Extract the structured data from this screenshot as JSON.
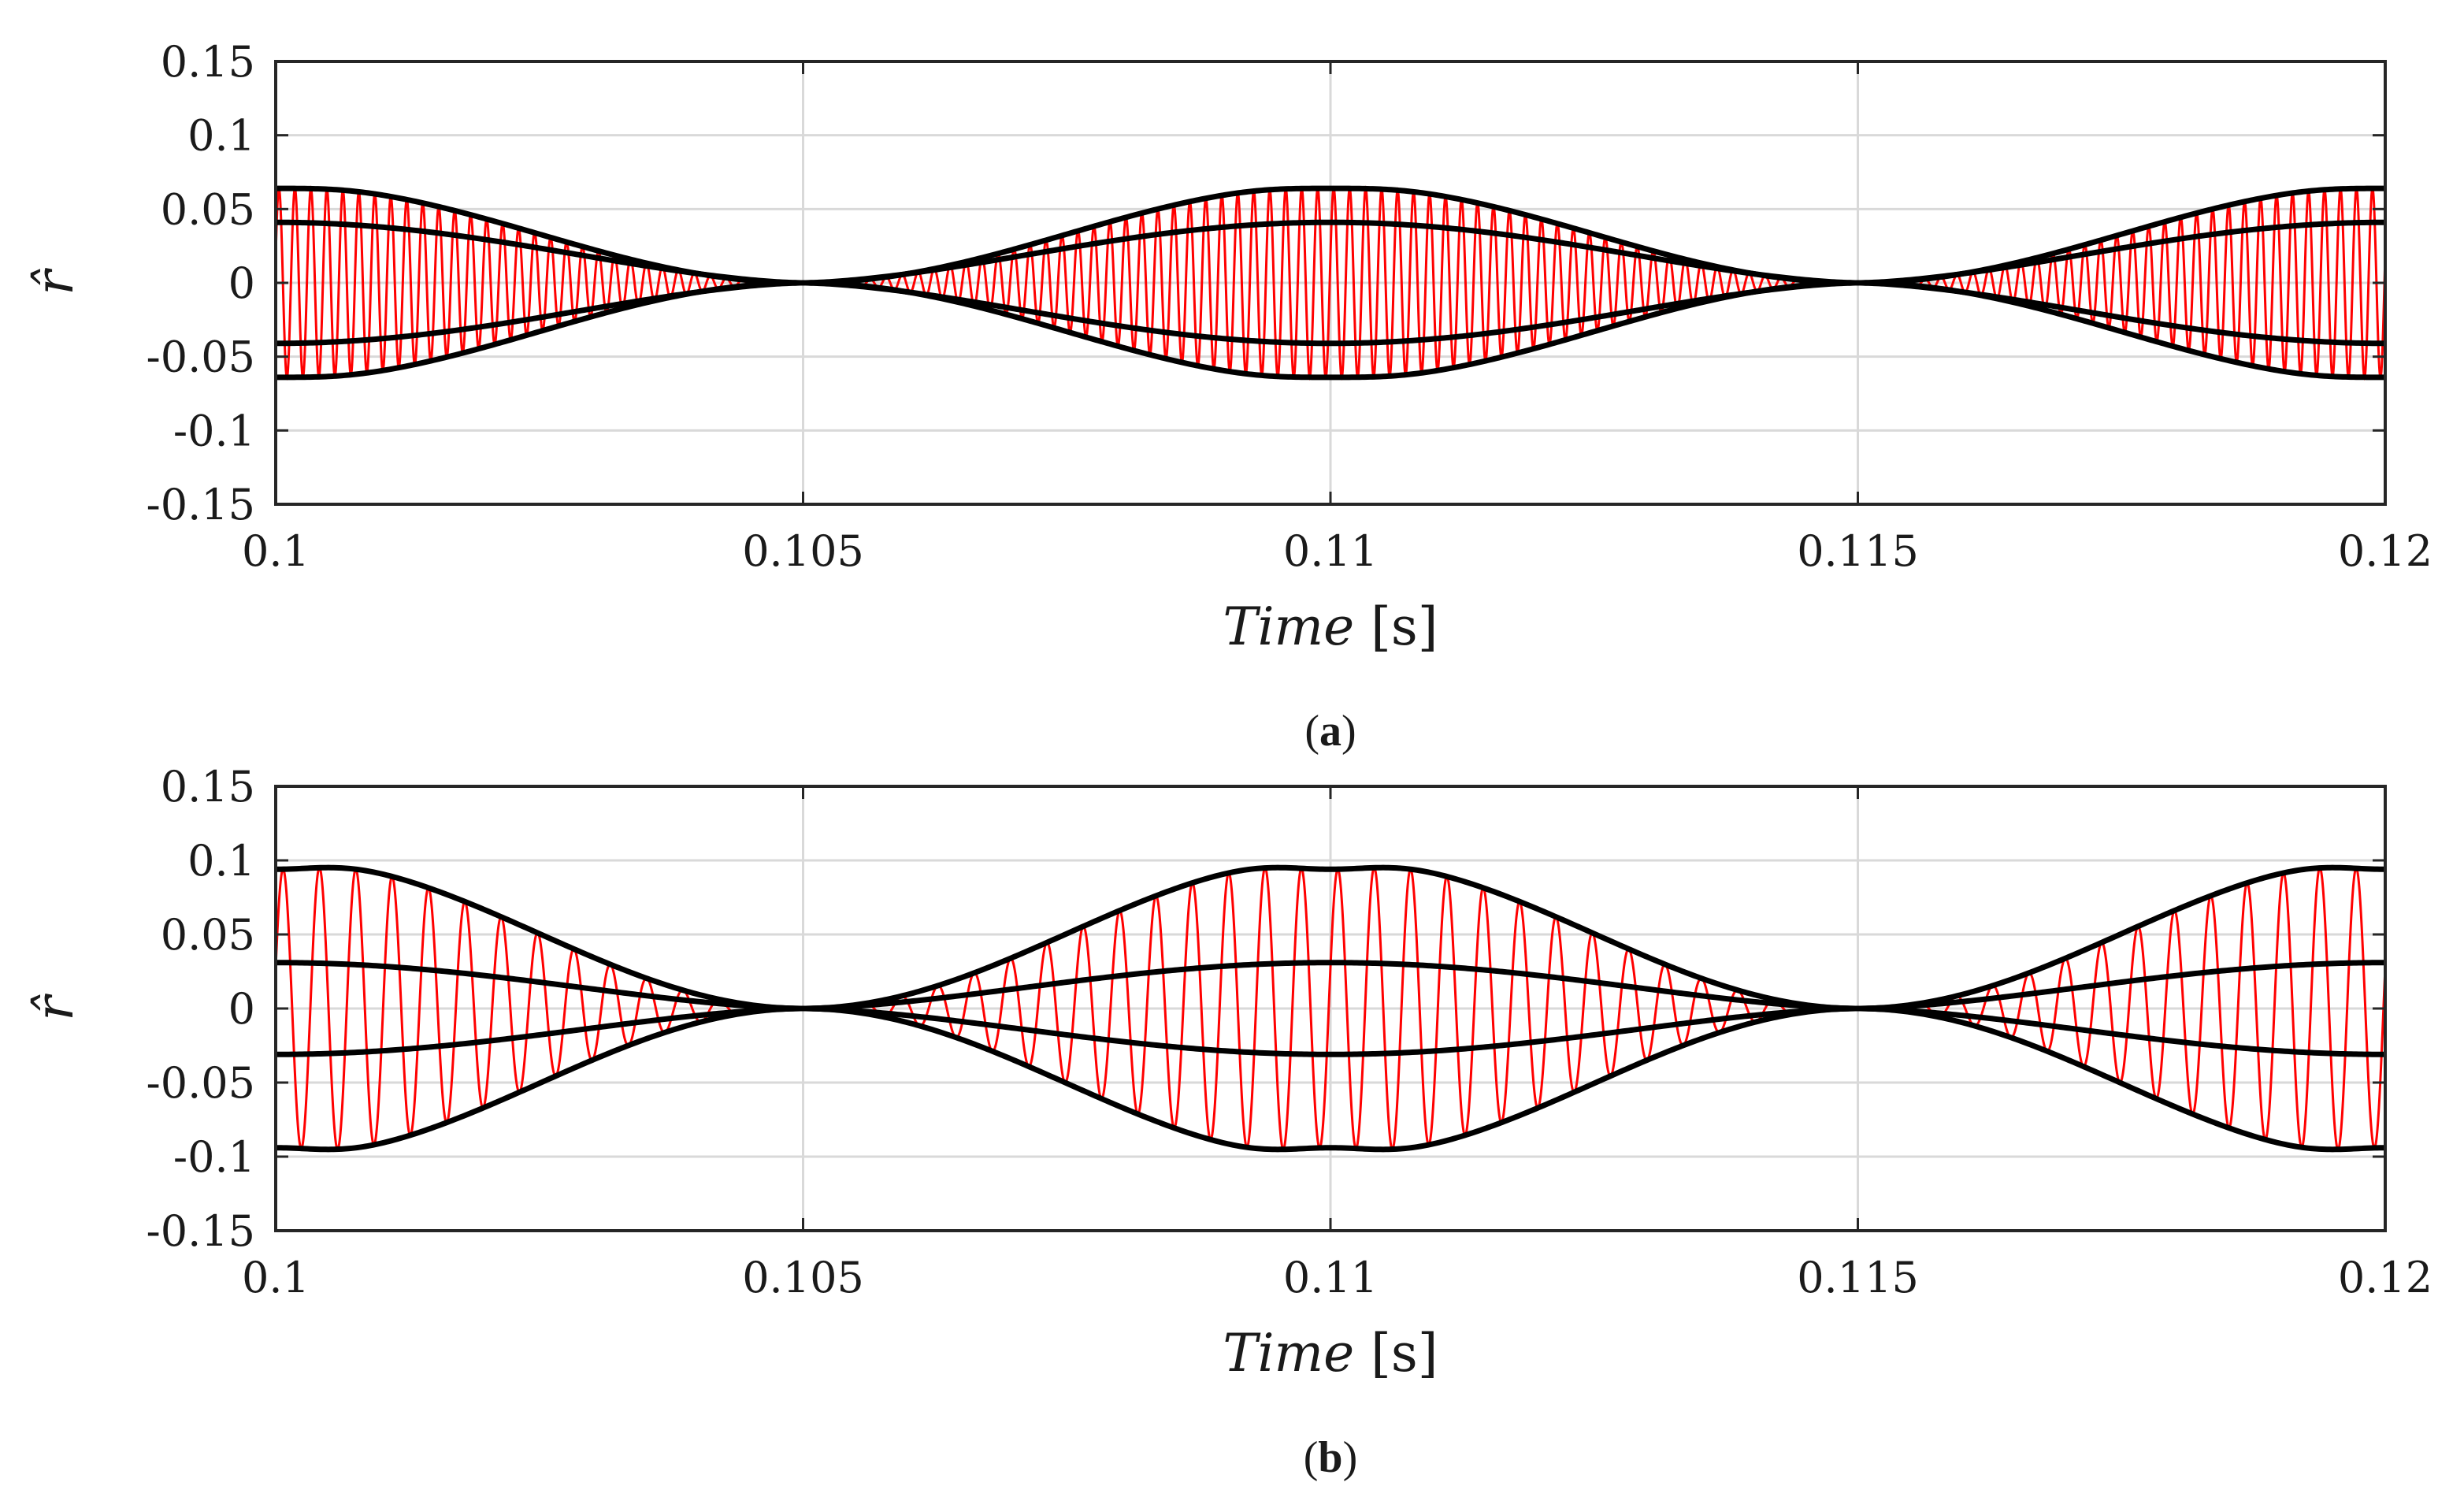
{
  "chart_data": [
    {
      "type": "line",
      "caption_letter": "a",
      "xlabel_italic": "Time",
      "xlabel_unit": "[s]",
      "ylabel": "r̂",
      "xlim": [
        0.1,
        0.12
      ],
      "ylim": [
        -0.15,
        0.15
      ],
      "grid": true,
      "xticks": [
        0.1,
        0.105,
        0.11,
        0.115,
        0.12
      ],
      "xtick_labels": [
        "0.1",
        "0.105",
        "0.11",
        "0.115",
        "0.12"
      ],
      "yticks": [
        0.15,
        0.1,
        0.05,
        0,
        -0.05,
        -0.1,
        -0.15
      ],
      "ytick_labels": [
        "0.15",
        "0.1",
        "0.05",
        "0",
        "-0.05",
        "-0.1",
        "-0.15"
      ],
      "beat_period": 0.01,
      "zero_crossings": [
        0.105,
        0.115
      ],
      "signal": {
        "name": "r̂",
        "color": "#ff0000",
        "carrier_cycles": 132
      },
      "series": [
        {
          "name": "outer envelope (+)",
          "color": "#000000",
          "peak": 0.066,
          "value_at_0.1": 0.064,
          "value_at_0.11": 0.064
        },
        {
          "name": "outer envelope (−)",
          "color": "#000000",
          "peak": -0.066,
          "value_at_0.1": -0.064,
          "value_at_0.11": -0.064
        },
        {
          "name": "inner envelope (+)",
          "color": "#000000",
          "peak": 0.041,
          "value_at_0.1": 0.041,
          "value_at_0.11": 0.041
        },
        {
          "name": "inner envelope (−)",
          "color": "#000000",
          "peak": -0.041,
          "value_at_0.1": -0.041,
          "value_at_0.11": -0.041
        }
      ]
    },
    {
      "type": "line",
      "caption_letter": "b",
      "xlabel_italic": "Time",
      "xlabel_unit": "[s]",
      "ylabel": "r̂",
      "xlim": [
        0.1,
        0.12
      ],
      "ylim": [
        -0.15,
        0.15
      ],
      "grid": true,
      "xticks": [
        0.1,
        0.105,
        0.11,
        0.115,
        0.12
      ],
      "xtick_labels": [
        "0.1",
        "0.105",
        "0.11",
        "0.115",
        "0.12"
      ],
      "yticks": [
        0.15,
        0.1,
        0.05,
        0,
        -0.05,
        -0.1,
        -0.15
      ],
      "ytick_labels": [
        "0.15",
        "0.1",
        "0.05",
        "0",
        "-0.05",
        "-0.1",
        "-0.15"
      ],
      "beat_period": 0.01,
      "zero_crossings": [
        0.105,
        0.115
      ],
      "signal": {
        "name": "r̂",
        "color": "#ff0000",
        "carrier_cycles": 58
      },
      "series": [
        {
          "name": "outer envelope (+)",
          "color": "#000000",
          "peak": 0.101,
          "value_at_0.1": 0.094,
          "value_at_0.11": 0.094
        },
        {
          "name": "outer envelope (−)",
          "color": "#000000",
          "peak": -0.101,
          "value_at_0.1": -0.094,
          "value_at_0.11": -0.094
        },
        {
          "name": "inner envelope (+)",
          "color": "#000000",
          "peak": 0.031,
          "value_at_0.1": 0.031,
          "value_at_0.11": 0.031
        },
        {
          "name": "inner envelope (−)",
          "color": "#000000",
          "peak": -0.031,
          "value_at_0.1": -0.031,
          "value_at_0.11": -0.031
        }
      ]
    }
  ]
}
